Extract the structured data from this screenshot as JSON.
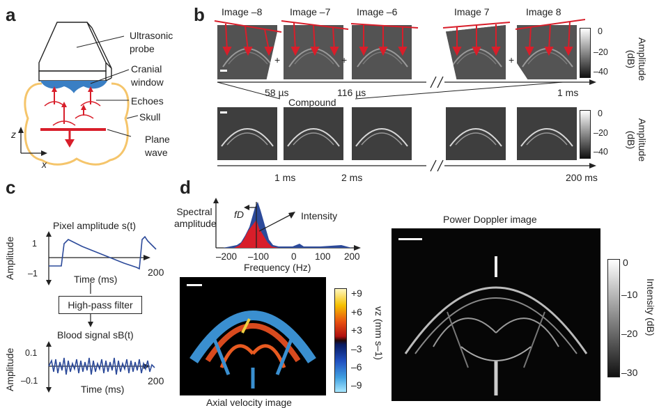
{
  "panels": {
    "a": "a",
    "b": "b",
    "c": "c",
    "d": "d"
  },
  "a": {
    "ultrasonic_probe": "Ultrasonic probe",
    "cranial_window": "Cranial window",
    "echoes": "Echoes",
    "skull": "Skull",
    "plane_wave": "Plane wave",
    "axis_z": "z",
    "axis_x": "x"
  },
  "b": {
    "top_images": [
      "Image –8",
      "Image –7",
      "Image –6",
      "Image 7",
      "Image 8"
    ],
    "plus": "+",
    "time_top": [
      "58 µs",
      "116 µs",
      "1 ms"
    ],
    "compound": "Compound",
    "time_bottom": [
      "1 ms",
      "2 ms",
      "200 ms"
    ],
    "colorbar_ticks": [
      "0",
      "–20",
      "–40"
    ],
    "colorbar_label": "Amplitude (dB)"
  },
  "c": {
    "pixel_title": "Pixel amplitude s(t)",
    "amplitude": "Amplitude",
    "ytick_top": "1",
    "ytick_bottom": "–1",
    "x_end": "200",
    "time_label": "Time (ms)",
    "filter": "High-pass filter",
    "blood_title": "Blood signal sB(t)",
    "ytick2_top": "0.1",
    "ytick2_bottom": "–0.1",
    "x2_end": "200",
    "time_label2": "Time (ms)"
  },
  "d": {
    "spectral_amplitude": "Spectral amplitude",
    "fd": "fD",
    "intensity": "Intensity",
    "freq_ticks": [
      "–200",
      "–100",
      "0",
      "100",
      "200"
    ],
    "freq_label": "Frequency (Hz)",
    "axial_label": "Axial velocity image",
    "velocity_ticks": [
      "+9",
      "+6",
      "+3",
      "–3",
      "–6",
      "–9"
    ],
    "velocity_label": "vz (mm s–1)",
    "power_title": "Power Doppler image",
    "power_ticks": [
      "0",
      "–10",
      "–20",
      "–30"
    ],
    "power_label": "Intensity (dB)"
  },
  "colors": {
    "probe_red": "#d81e2a",
    "signal_blue": "#2c4a9a",
    "window_blue": "#3a7fc4",
    "skull": "#f5c56b"
  }
}
